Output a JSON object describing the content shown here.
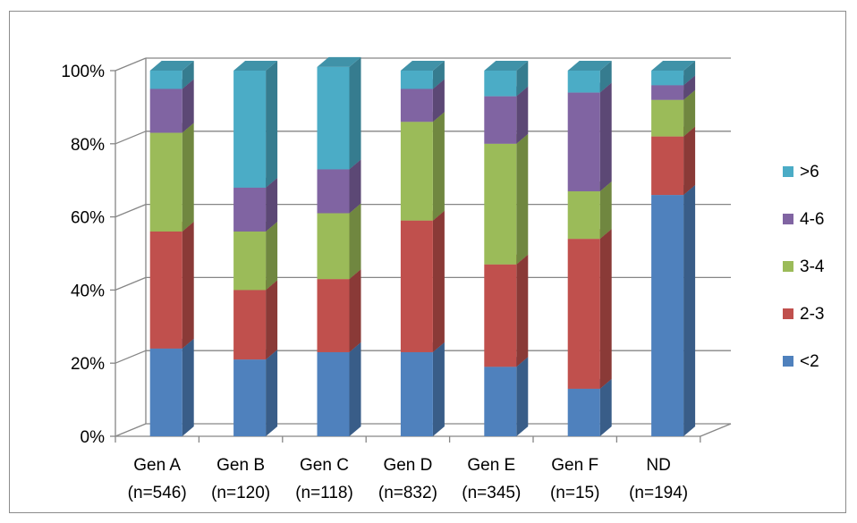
{
  "chart_data": {
    "type": "bar",
    "stacked": true,
    "percent": true,
    "three_d": true,
    "categories": [
      [
        "Gen A",
        "(n=546)"
      ],
      [
        "Gen B",
        "(n=120)"
      ],
      [
        "Gen C",
        "(n=118)"
      ],
      [
        "Gen D",
        "(n=832)"
      ],
      [
        "Gen E",
        "(n=345)"
      ],
      [
        "Gen F",
        "(n=15)"
      ],
      [
        "ND",
        "(n=194)"
      ]
    ],
    "series": [
      {
        "name": "<2",
        "color": "#4F81BD",
        "values": [
          24,
          21,
          23,
          23,
          19,
          13,
          66
        ]
      },
      {
        "name": "2-3",
        "color": "#C0504D",
        "values": [
          32,
          19,
          20,
          36,
          28,
          41,
          16
        ]
      },
      {
        "name": "3-4",
        "color": "#9BBB59",
        "values": [
          27,
          16,
          18,
          27,
          33,
          13,
          10
        ]
      },
      {
        "name": "4-6",
        "color": "#8064A2",
        "values": [
          12,
          12,
          12,
          9,
          13,
          27,
          4
        ]
      },
      {
        "name": ">6",
        "color": "#4BACC6",
        "values": [
          5,
          32,
          28,
          5,
          7,
          6,
          4
        ]
      }
    ],
    "y_ticks": [
      "0%",
      "20%",
      "40%",
      "60%",
      "80%",
      "100%"
    ],
    "ylim": [
      0,
      100
    ],
    "grid": true,
    "legend_position": "right"
  }
}
